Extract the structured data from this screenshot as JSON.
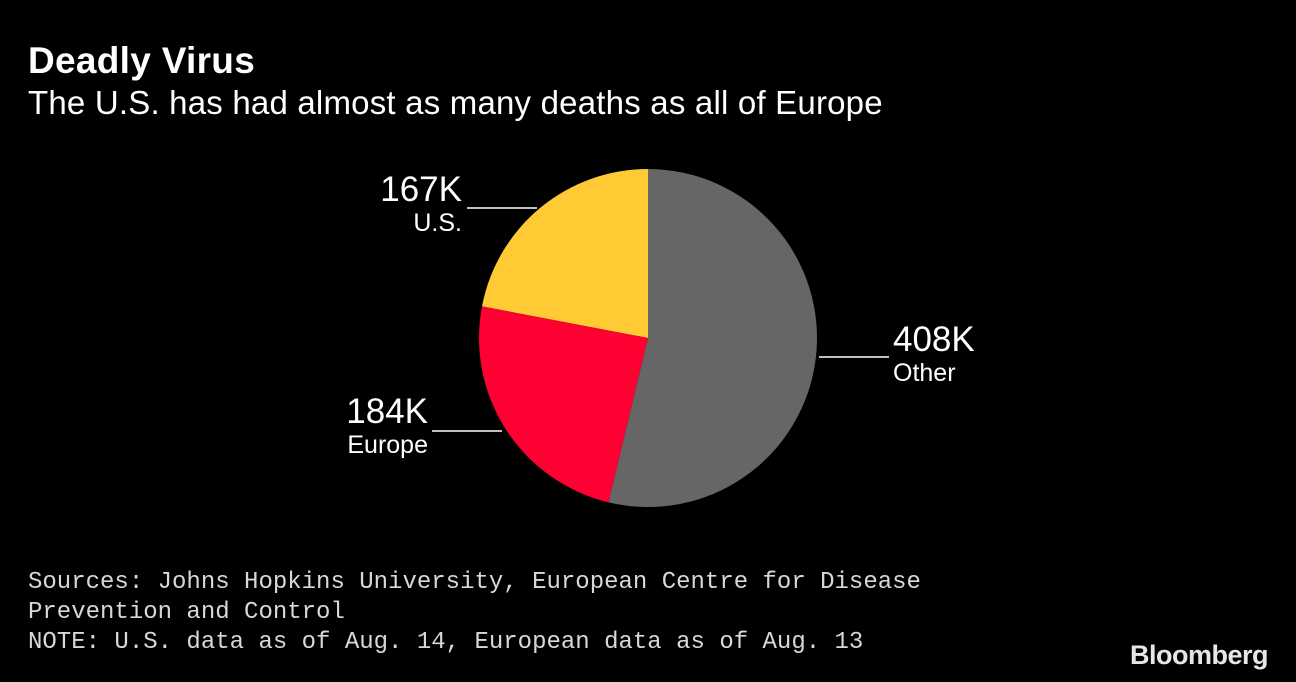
{
  "title": "Deadly Virus",
  "subtitle": "The U.S. has had almost as many deaths as all of Europe",
  "chart_data": {
    "type": "pie",
    "title": "Deadly Virus",
    "subtitle": "The U.S. has had almost as many deaths as all of Europe",
    "slices": [
      {
        "key": "us",
        "label": "U.S.",
        "value_label": "167K",
        "value": 167000,
        "color": "#FFCA33"
      },
      {
        "key": "europe",
        "label": "Europe",
        "value_label": "184K",
        "value": 184000,
        "color": "#FF0032"
      },
      {
        "key": "other",
        "label": "Other",
        "value_label": "408K",
        "value": 408000,
        "color": "#666666"
      }
    ],
    "order": "counter-clockwise from 12 o'clock: U.S., Europe, Other"
  },
  "footer": {
    "sources": "Sources: Johns Hopkins University, European Centre for Disease Prevention and Control",
    "note": "NOTE: U.S. data as of Aug. 14, European data as of Aug. 13"
  },
  "brand": "Bloomberg"
}
